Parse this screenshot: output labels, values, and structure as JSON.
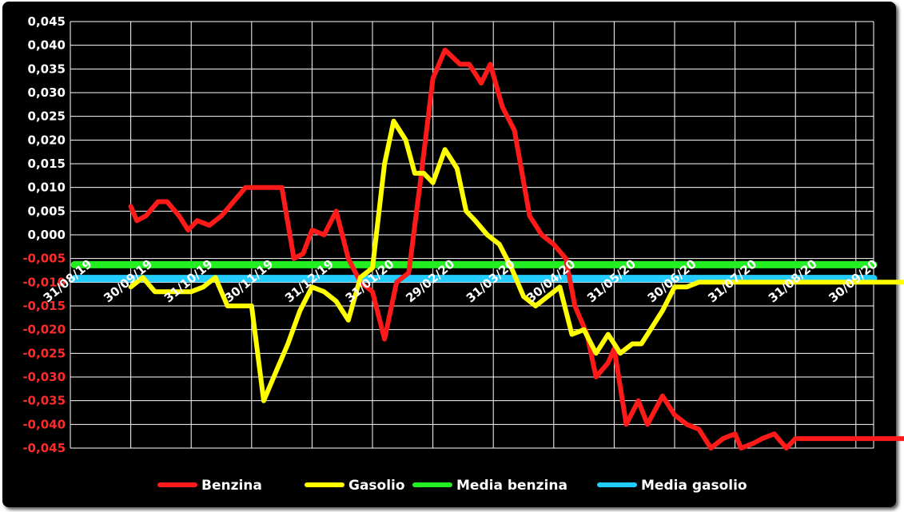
{
  "chart_data": {
    "type": "line",
    "title": "",
    "xlabel": "",
    "ylabel": "",
    "ylim": [
      -0.045,
      0.045
    ],
    "y_ticks": [
      "0,045",
      "0,040",
      "0,035",
      "0,030",
      "0,025",
      "0,020",
      "0,015",
      "0,010",
      "0,005",
      "0,000",
      "-0,005",
      "-0,010",
      "-0,015",
      "-0,020",
      "-0,025",
      "-0,030",
      "-0,035",
      "-0,040",
      "-0,045"
    ],
    "x_ticks": [
      "31/08/19",
      "30/09/19",
      "31/10/19",
      "30/11/19",
      "31/12/19",
      "31/01/20",
      "29/02/20",
      "31/03/20",
      "30/04/20",
      "31/05/20",
      "30/06/20",
      "31/07/20",
      "31/08/20",
      "30/09/20"
    ],
    "grid": true,
    "legend_position": "bottom",
    "colors": {
      "benzina": "#ff1a1a",
      "gasolio": "#ffff00",
      "media_benzina": "#22ee22",
      "media_gasolio": "#22ccff",
      "background": "#000000",
      "grid": "#ffffff"
    },
    "series": [
      {
        "name": "Benzina",
        "key": "benzina",
        "x": [
          1,
          1.1,
          1.25,
          1.45,
          1.6,
          1.8,
          1.95,
          2.1,
          2.3,
          2.5,
          2.7,
          2.9,
          3.1,
          3.3,
          3.5,
          3.7,
          3.85,
          4.0,
          4.2,
          4.4,
          4.6,
          4.8,
          5.0,
          5.2,
          5.4,
          5.6,
          5.8,
          6.0,
          6.2,
          6.45,
          6.6,
          6.8,
          6.95,
          7.15,
          7.35,
          7.6,
          7.8,
          8.0,
          8.2,
          8.35,
          8.55,
          8.7,
          8.9,
          9.0,
          9.2,
          9.4,
          9.55,
          9.8,
          10.0,
          10.2,
          10.4,
          10.6,
          10.8,
          11.0,
          11.1,
          11.3,
          11.45,
          11.65,
          11.85,
          12.0,
          12.2,
          12.4,
          12.6,
          12.8,
          12.95,
          13.2,
          13.4,
          13.6,
          13.8,
          14.0
        ],
        "values": [
          0.006,
          0.003,
          0.004,
          0.007,
          0.007,
          0.004,
          0.001,
          0.003,
          0.002,
          0.004,
          0.007,
          0.01,
          0.01,
          0.01,
          0.01,
          -0.005,
          -0.004,
          0.001,
          0.0,
          0.005,
          -0.005,
          -0.01,
          -0.012,
          -0.022,
          -0.01,
          -0.008,
          0.012,
          0.033,
          0.039,
          0.036,
          0.036,
          0.032,
          0.036,
          0.027,
          0.022,
          0.004,
          0.0,
          -0.002,
          -0.005,
          -0.015,
          -0.021,
          -0.03,
          -0.027,
          -0.024,
          -0.04,
          -0.035,
          -0.04,
          -0.034,
          -0.038,
          -0.04,
          -0.041,
          -0.045,
          -0.043,
          -0.042,
          -0.045,
          -0.044,
          -0.043,
          -0.042,
          -0.045,
          -0.043,
          -0.043,
          -0.043,
          -0.043,
          -0.043,
          -0.043,
          -0.043,
          -0.043,
          -0.043,
          -0.043,
          -0.043
        ]
      },
      {
        "name": "Gasolio",
        "key": "gasolio",
        "x": [
          1,
          1.2,
          1.4,
          1.6,
          1.8,
          2.0,
          2.2,
          2.4,
          2.6,
          2.8,
          3.0,
          3.2,
          3.4,
          3.6,
          3.8,
          4.0,
          4.2,
          4.4,
          4.6,
          4.8,
          5.0,
          5.2,
          5.35,
          5.55,
          5.7,
          5.85,
          6.0,
          6.2,
          6.4,
          6.55,
          6.7,
          6.9,
          7.1,
          7.3,
          7.5,
          7.7,
          7.9,
          8.1,
          8.3,
          8.5,
          8.7,
          8.9,
          9.1,
          9.3,
          9.45,
          9.6,
          9.8,
          10.0,
          10.2,
          10.4,
          10.6,
          10.8,
          11.0,
          11.2,
          11.45,
          11.7,
          11.95,
          12.2,
          12.45,
          12.7,
          12.95,
          13.2,
          13.45,
          13.7,
          14.0
        ],
        "values": [
          -0.011,
          -0.009,
          -0.012,
          -0.012,
          -0.012,
          -0.012,
          -0.011,
          -0.009,
          -0.015,
          -0.015,
          -0.015,
          -0.035,
          -0.029,
          -0.023,
          -0.016,
          -0.011,
          -0.012,
          -0.014,
          -0.018,
          -0.009,
          -0.007,
          0.015,
          0.024,
          0.02,
          0.013,
          0.013,
          0.011,
          0.018,
          0.014,
          0.005,
          0.003,
          0.0,
          -0.002,
          -0.007,
          -0.013,
          -0.015,
          -0.013,
          -0.011,
          -0.021,
          -0.02,
          -0.025,
          -0.021,
          -0.025,
          -0.023,
          -0.023,
          -0.02,
          -0.016,
          -0.011,
          -0.011,
          -0.01,
          -0.01,
          -0.01,
          -0.01,
          -0.01,
          -0.01,
          -0.01,
          -0.01,
          -0.01,
          -0.01,
          -0.01,
          -0.01,
          -0.01,
          -0.01,
          -0.01,
          -0.01
        ]
      },
      {
        "name": "Media benzina",
        "key": "media_benzina",
        "x": [
          0,
          14
        ],
        "values": [
          -0.0063,
          -0.0063
        ]
      },
      {
        "name": "Media gasolio",
        "key": "media_gasolio",
        "x": [
          0,
          14
        ],
        "values": [
          -0.0092,
          -0.0092
        ]
      }
    ]
  }
}
